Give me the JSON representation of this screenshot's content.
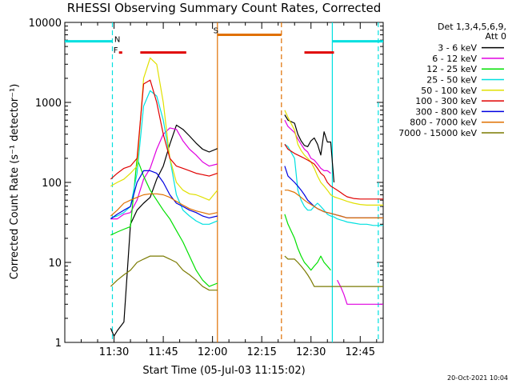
{
  "chart_data": {
    "type": "line",
    "title": "RHESSI Observing Summary Count Rates, Corrected",
    "xlabel": "Start Time (05-Jul-03 11:15:02)",
    "ylabel": "Corrected Count Rate (s⁻¹ detector⁻¹)",
    "yscale": "log",
    "ylim": [
      1,
      10000
    ],
    "xlim": [
      "11:15",
      "12:52"
    ],
    "xlim_minutes": [
      0,
      97
    ],
    "x_ticks": [
      {
        "label": "11:30",
        "value": 15
      },
      {
        "label": "11:45",
        "value": 30
      },
      {
        "label": "12:00",
        "value": 45
      },
      {
        "label": "12:15",
        "value": 60
      },
      {
        "label": "12:30",
        "value": 75
      },
      {
        "label": "12:45",
        "value": 90
      }
    ],
    "y_ticks": [
      {
        "label": "1",
        "value": 1
      },
      {
        "label": "10",
        "value": 10
      },
      {
        "label": "100",
        "value": 100
      },
      {
        "label": "1000",
        "value": 1000
      },
      {
        "label": "10000",
        "value": 10000
      }
    ],
    "legend": {
      "position": "top-right",
      "header_lines": [
        "Det 1,3,4,5,6,9,",
        "Att 0"
      ]
    },
    "series": [
      {
        "name": "3 - 6 keV",
        "color": "#000000",
        "x": [
          0,
          13.5,
          14,
          15,
          16,
          18,
          20,
          22,
          24,
          26,
          28,
          30,
          32,
          34,
          36,
          38,
          40,
          42,
          44,
          46.5,
          47,
          66,
          67,
          68,
          70,
          71,
          72,
          73,
          74,
          75,
          76,
          77,
          78,
          79,
          80,
          81,
          82,
          83,
          84,
          85,
          86,
          88,
          90,
          92,
          94,
          96,
          97
        ],
        "y": [
          null,
          null,
          1.5,
          1.2,
          1.4,
          1.8,
          30,
          45,
          55,
          65,
          110,
          160,
          300,
          520,
          460,
          380,
          310,
          260,
          240,
          265,
          null,
          null,
          700,
          600,
          550,
          400,
          330,
          290,
          280,
          330,
          360,
          300,
          220,
          430,
          320,
          320,
          100,
          null,
          null,
          null,
          null,
          null,
          null,
          null,
          null,
          null,
          null
        ]
      },
      {
        "name": "6 - 12 keV",
        "color": "#e000e0",
        "x": [
          0,
          13.5,
          14,
          16,
          18,
          20,
          22,
          24,
          26,
          28,
          30,
          32,
          34,
          36,
          38,
          40,
          42,
          44,
          46.5,
          47,
          66,
          67,
          68,
          70,
          71,
          72,
          73,
          74,
          75,
          76,
          77,
          78,
          79,
          80,
          81,
          82,
          83,
          84,
          85,
          86,
          88,
          90,
          92,
          94,
          96,
          97
        ],
        "y": [
          null,
          null,
          35,
          35,
          40,
          42,
          60,
          110,
          150,
          260,
          400,
          480,
          460,
          330,
          260,
          220,
          180,
          160,
          170,
          null,
          null,
          600,
          500,
          420,
          350,
          300,
          260,
          240,
          200,
          190,
          170,
          150,
          140,
          140,
          130,
          null,
          6,
          5,
          4,
          3,
          3,
          3,
          3,
          3,
          3,
          3
        ]
      },
      {
        "name": "12 - 25 keV",
        "color": "#00e000",
        "x": [
          0,
          13.5,
          14,
          16,
          18,
          20,
          22,
          24,
          26,
          28,
          30,
          32,
          34,
          36,
          38,
          40,
          42,
          44,
          46.5,
          47,
          66,
          67,
          68,
          70,
          71,
          72,
          73,
          74,
          75,
          76,
          77,
          78,
          79,
          80,
          81,
          82,
          83,
          84,
          85,
          86,
          88,
          90,
          92,
          94,
          96,
          97
        ],
        "y": [
          null,
          null,
          22,
          24,
          26,
          28,
          200,
          120,
          80,
          60,
          45,
          35,
          25,
          18,
          12,
          8,
          6,
          5,
          5.5,
          null,
          null,
          40,
          30,
          20,
          15,
          12,
          10,
          9,
          8,
          9,
          10,
          12,
          10,
          9,
          8,
          null,
          null,
          null,
          null,
          null,
          null,
          null,
          null,
          null,
          null,
          null
        ]
      },
      {
        "name": "25 - 50 keV",
        "color": "#00e0e0",
        "x": [
          0,
          13.5,
          14,
          16,
          18,
          20,
          22,
          24,
          26,
          28,
          30,
          32,
          34,
          36,
          38,
          40,
          42,
          44,
          46.5,
          47,
          66,
          67,
          68,
          70,
          71,
          72,
          73,
          74,
          75,
          76,
          77,
          78,
          79,
          80,
          81,
          82,
          83,
          84,
          85,
          86,
          88,
          90,
          92,
          94,
          96,
          97
        ],
        "y": [
          null,
          null,
          36,
          38,
          42,
          50,
          130,
          900,
          1400,
          1200,
          600,
          200,
          70,
          45,
          38,
          33,
          30,
          30,
          33,
          null,
          null,
          300,
          280,
          200,
          80,
          60,
          50,
          45,
          45,
          50,
          55,
          50,
          45,
          40,
          38,
          37,
          35,
          34,
          33,
          32,
          31,
          30,
          30,
          29,
          29,
          29
        ]
      },
      {
        "name": "50 - 100 keV",
        "color": "#e0e000",
        "x": [
          0,
          13.5,
          14,
          16,
          18,
          20,
          22,
          24,
          26,
          28,
          30,
          32,
          34,
          36,
          38,
          40,
          42,
          44,
          46.5,
          47,
          66,
          67,
          68,
          70,
          71,
          72,
          73,
          74,
          75,
          76,
          77,
          78,
          79,
          80,
          81,
          82,
          83,
          84,
          85,
          86,
          88,
          90,
          92,
          94,
          96,
          97
        ],
        "y": [
          null,
          null,
          90,
          100,
          110,
          130,
          160,
          2000,
          3600,
          3000,
          1000,
          200,
          100,
          80,
          72,
          70,
          65,
          60,
          80,
          null,
          null,
          800,
          650,
          450,
          300,
          250,
          220,
          200,
          180,
          150,
          120,
          100,
          90,
          80,
          70,
          66,
          64,
          62,
          60,
          58,
          55,
          53,
          52,
          52,
          52,
          52
        ]
      },
      {
        "name": "100 - 300 keV",
        "color": "#e00000",
        "x": [
          0,
          13.5,
          14,
          16,
          18,
          20,
          22,
          24,
          26,
          28,
          30,
          32,
          34,
          36,
          38,
          40,
          42,
          44,
          46.5,
          47,
          66,
          67,
          68,
          70,
          71,
          72,
          73,
          74,
          75,
          76,
          77,
          78,
          79,
          80,
          81,
          82,
          83,
          84,
          85,
          86,
          88,
          90,
          92,
          94,
          96,
          97
        ],
        "y": [
          null,
          null,
          110,
          130,
          150,
          160,
          200,
          1700,
          1900,
          1000,
          400,
          200,
          160,
          150,
          140,
          130,
          125,
          120,
          130,
          null,
          null,
          300,
          260,
          230,
          220,
          210,
          200,
          190,
          180,
          170,
          150,
          130,
          120,
          100,
          90,
          85,
          80,
          75,
          70,
          66,
          63,
          62,
          62,
          62,
          62,
          62
        ]
      },
      {
        "name": "300 - 800 keV",
        "color": "#0000e0",
        "x": [
          0,
          13.5,
          14,
          16,
          18,
          20,
          22,
          24,
          26,
          28,
          30,
          32,
          34,
          36,
          38,
          40,
          42,
          44,
          46.5,
          47,
          66,
          67,
          68,
          70,
          71,
          72,
          73,
          74,
          75,
          76,
          77,
          78,
          79,
          80,
          81,
          82,
          83,
          84,
          85,
          86,
          88,
          90,
          92,
          94,
          96,
          97
        ],
        "y": [
          null,
          null,
          35,
          40,
          45,
          50,
          100,
          140,
          140,
          130,
          100,
          70,
          55,
          50,
          45,
          42,
          38,
          36,
          38,
          null,
          null,
          160,
          120,
          100,
          90,
          80,
          70,
          60,
          55,
          50,
          47,
          45,
          43,
          42,
          41,
          40,
          39,
          38,
          37,
          36,
          36,
          36,
          36,
          36,
          36,
          36
        ]
      },
      {
        "name": "800 - 7000 keV",
        "color": "#e07000",
        "x": [
          0,
          13.5,
          14,
          16,
          18,
          20,
          22,
          24,
          26,
          28,
          30,
          32,
          34,
          36,
          38,
          40,
          42,
          44,
          46.5,
          47,
          66,
          67,
          68,
          70,
          71,
          72,
          73,
          74,
          75,
          76,
          77,
          78,
          79,
          80,
          81,
          82,
          83,
          84,
          85,
          86,
          88,
          90,
          92,
          94,
          96,
          97
        ],
        "y": [
          null,
          null,
          38,
          45,
          55,
          60,
          65,
          70,
          72,
          72,
          70,
          65,
          58,
          52,
          47,
          44,
          42,
          40,
          42,
          null,
          null,
          80,
          80,
          75,
          70,
          65,
          60,
          56,
          53,
          50,
          47,
          45,
          43,
          42,
          41,
          40,
          39,
          38,
          37,
          36,
          36,
          36,
          36,
          36,
          36,
          36
        ]
      },
      {
        "name": "7000 - 15000 keV",
        "color": "#7a7a00",
        "x": [
          0,
          13.5,
          14,
          16,
          18,
          20,
          22,
          24,
          26,
          28,
          30,
          32,
          34,
          36,
          38,
          40,
          42,
          44,
          46.5,
          47,
          66,
          67,
          68,
          70,
          71,
          72,
          73,
          74,
          75,
          76,
          77,
          78,
          79,
          80,
          81,
          82,
          83,
          84,
          85,
          86,
          88,
          90,
          92,
          94,
          96,
          97
        ],
        "y": [
          null,
          null,
          5,
          6,
          7,
          8,
          10,
          11,
          12,
          12,
          12,
          11,
          10,
          8,
          7,
          6,
          5,
          4.5,
          4.5,
          null,
          null,
          12,
          11,
          11,
          10,
          9,
          8,
          7,
          6,
          5,
          5,
          5,
          5,
          5,
          5,
          5,
          5,
          5,
          5,
          5,
          5,
          5,
          5,
          5,
          5,
          5
        ]
      }
    ],
    "annotations": [
      {
        "label": "N",
        "kind": "night",
        "color": "#00e0e0"
      },
      {
        "label": "F",
        "kind": "flare",
        "color": "#e00000"
      },
      {
        "label": "S",
        "kind": "saa",
        "color": "#e07000"
      }
    ],
    "top_bars": [
      {
        "color": "#00e0e0",
        "x": [
          0,
          14.5
        ],
        "level": 5800
      },
      {
        "color": "#00e0e0",
        "x": [
          81.5,
          97
        ],
        "level": 5800
      },
      {
        "color": "#e00000",
        "x": [
          16.5,
          17.5
        ],
        "level": 4200
      },
      {
        "color": "#e00000",
        "x": [
          23,
          37
        ],
        "level": 4200
      },
      {
        "color": "#e07000",
        "x": [
          46.5,
          66
        ],
        "level": 7000
      },
      {
        "color": "#e00000",
        "x": [
          73,
          82
        ],
        "level": 4200
      }
    ],
    "vlines": [
      {
        "x": 14.5,
        "color": "#00e0e0",
        "style": "dashed"
      },
      {
        "x": 81.5,
        "color": "#00e0e0",
        "style": "solid"
      },
      {
        "x": 95.5,
        "color": "#00e0e0",
        "style": "dashed"
      },
      {
        "x": 46.5,
        "color": "#e07000",
        "style": "solid"
      },
      {
        "x": 66,
        "color": "#e07000",
        "style": "dashed"
      }
    ]
  },
  "footer": {
    "timestamp": "20-Oct-2021 10:04"
  }
}
